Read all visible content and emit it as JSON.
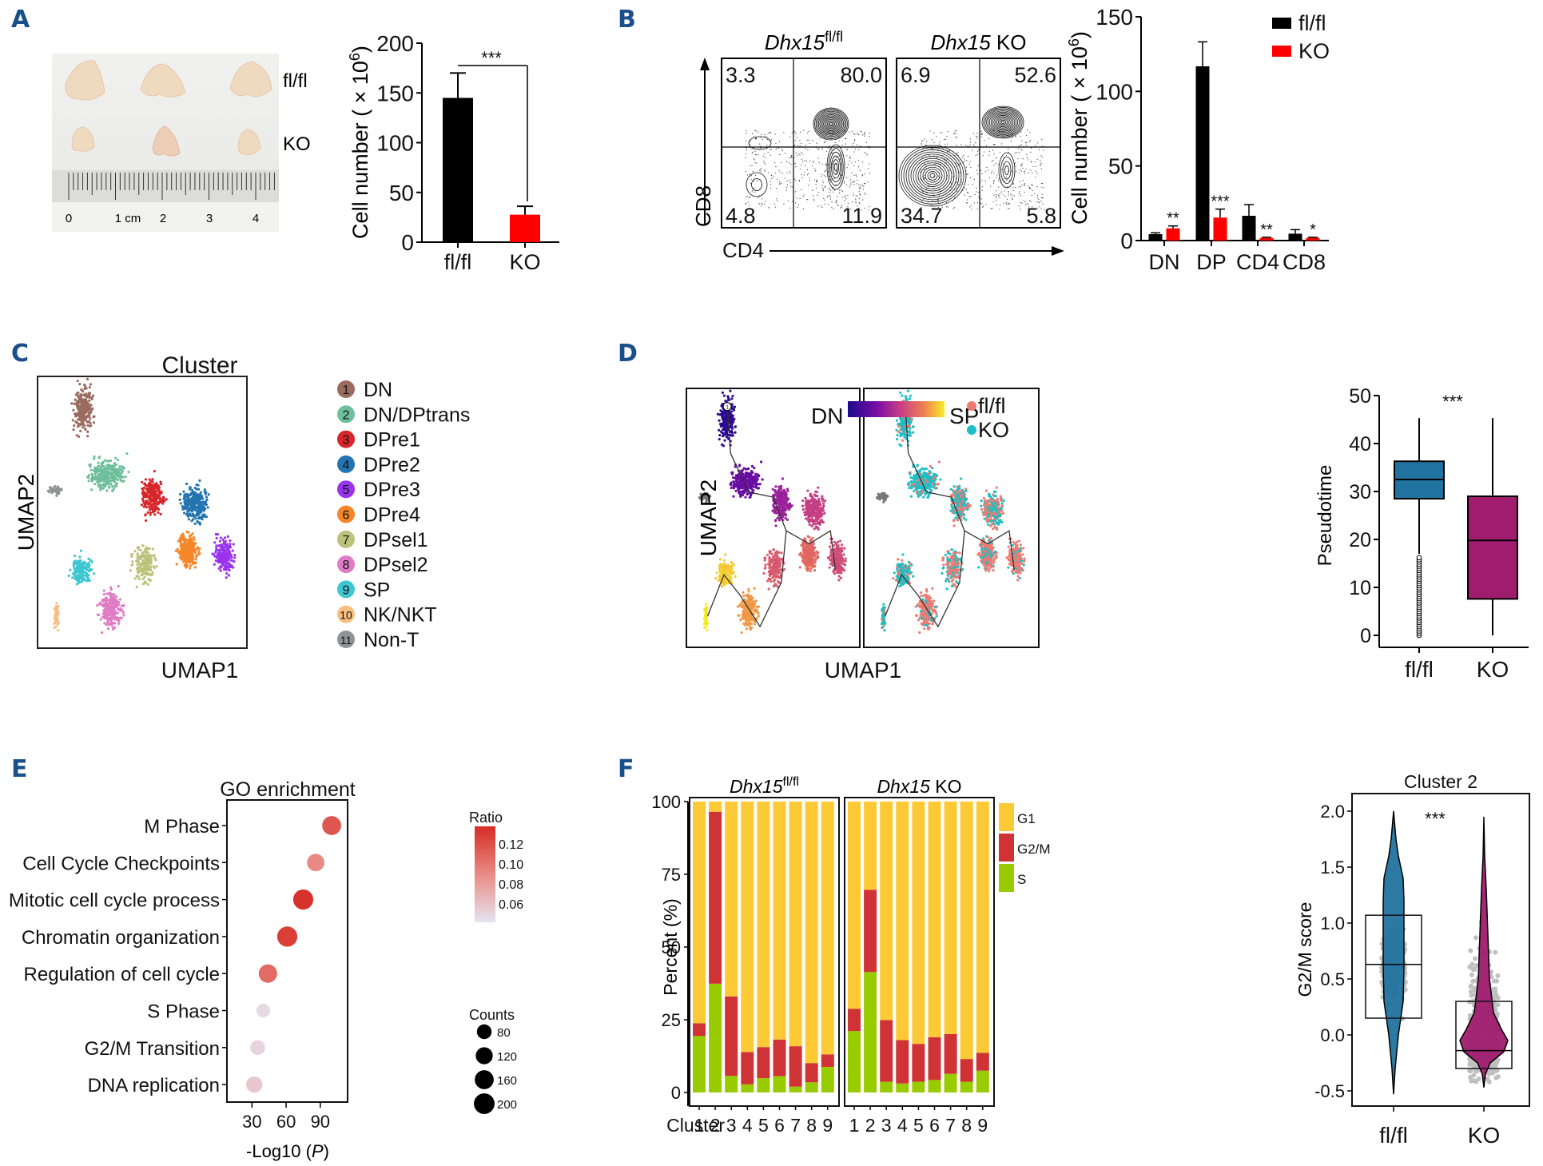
{
  "panel_letters": [
    "A",
    "B",
    "C",
    "D",
    "E",
    "F"
  ],
  "colors": {
    "flfl": "#000000",
    "ko": "#ff0000",
    "panel_letter": "#1b4f8a",
    "box_flfl": "#21739f",
    "box_ko": "#9f1c6f",
    "g1": "#fdca36",
    "g2m": "#cf3336",
    "s": "#99cc00",
    "pt_flfl": "#f07a72",
    "pt_ko": "#1cbfc4",
    "jitter": "#c0c0c0"
  },
  "chart_data": [
    {
      "id": "A-photo",
      "type": "image",
      "row_labels": [
        "fl/fl",
        "KO"
      ],
      "ruler_labels": [
        "0",
        "1 cm",
        "2",
        "3",
        "4"
      ]
    },
    {
      "id": "A-bar",
      "type": "bar",
      "categories": [
        "fl/fl",
        "KO"
      ],
      "values": [
        145,
        27.6
      ],
      "errors_upper": [
        170,
        36
      ],
      "bar_colors": [
        "#000000",
        "#ff0000"
      ],
      "ylabel": "Cell number ( × 10",
      "ylabel_sup": "6",
      "ylabel_close": ")",
      "yticks": [
        0,
        50,
        100,
        150,
        200
      ],
      "ylim": [
        0,
        200
      ],
      "significance": "***"
    },
    {
      "id": "B-flow",
      "type": "contour",
      "xlabel": "CD4",
      "ylabel": "CD8",
      "plots": [
        {
          "title_main": "Dhx15",
          "title_sup": "fl/fl",
          "title_rest": "",
          "quadrants": {
            "ul": "3.3",
            "ur": "80.0",
            "ll": "4.8",
            "lr": "11.9"
          }
        },
        {
          "title_main": "Dhx15",
          "title_sup": "",
          "title_rest": " KO",
          "quadrants": {
            "ul": "6.9",
            "ur": "52.6",
            "ll": "34.7",
            "lr": "5.8"
          }
        }
      ]
    },
    {
      "id": "B-bar",
      "type": "bar",
      "categories": [
        "DN",
        "DP",
        "CD4",
        "CD8"
      ],
      "series": [
        {
          "name": "fl/fl",
          "values": [
            4.3,
            116.8,
            16.6,
            4.6
          ],
          "errors_upper": [
            5.2,
            133.2,
            24.1,
            7.3
          ]
        },
        {
          "name": "KO",
          "values": [
            8.2,
            15.4,
            1.8,
            1.8
          ],
          "errors_upper": [
            9.8,
            21.1,
            2.2,
            2.2
          ]
        }
      ],
      "significance": [
        "**",
        "***",
        "**",
        "*"
      ],
      "ylabel": "Cell number ( × 10",
      "ylabel_sup": "6",
      "ylabel_close": ")",
      "yticks": [
        0,
        50,
        100,
        150
      ],
      "ylim": [
        0,
        150
      ],
      "legend": [
        "fl/fl",
        "KO"
      ],
      "legend_position": "top-right"
    },
    {
      "id": "C-umap",
      "type": "scatter",
      "title": "Cluster",
      "xlabel": "UMAP1",
      "ylabel": "UMAP2",
      "clusters": [
        {
          "id": "1",
          "name": "DN",
          "color": "#9b6b5f"
        },
        {
          "id": "2",
          "name": "DN/DPtrans",
          "color": "#6ebf9c"
        },
        {
          "id": "3",
          "name": "DPre1",
          "color": "#d6262b"
        },
        {
          "id": "4",
          "name": "DPre2",
          "color": "#2374b0"
        },
        {
          "id": "5",
          "name": "DPre3",
          "color": "#9933ee"
        },
        {
          "id": "6",
          "name": "DPre4",
          "color": "#f5862a"
        },
        {
          "id": "7",
          "name": "DPsel1",
          "color": "#bdc27b"
        },
        {
          "id": "8",
          "name": "DPsel2",
          "color": "#e07cc5"
        },
        {
          "id": "9",
          "name": "SP",
          "color": "#3ec6d1"
        },
        {
          "id": "10",
          "name": "NK/NKT",
          "color": "#f8bf7f"
        },
        {
          "id": "11",
          "name": "Non-T",
          "color": "#8f9394"
        }
      ]
    },
    {
      "id": "D-umap",
      "type": "scatter",
      "xlabel": "UMAP1",
      "ylabel": "UMAP2",
      "colorbar": {
        "low": "DN",
        "high": "SP"
      },
      "legend": [
        "fl/fl",
        "KO"
      ],
      "root_label": "1"
    },
    {
      "id": "D-box",
      "type": "box",
      "categories": [
        "fl/fl",
        "KO"
      ],
      "ylabel": "Pseudotime",
      "yticks": [
        0,
        10,
        20,
        30,
        40,
        50
      ],
      "ylim": [
        0,
        50
      ],
      "boxes": [
        {
          "name": "fl/fl",
          "whisker_low": 17,
          "q1": 28.5,
          "median": 32.5,
          "q3": 36.3,
          "whisker_high": 45.3,
          "outliers_range": [
            0,
            16.5
          ]
        },
        {
          "name": "KO",
          "whisker_low": 0,
          "q1": 7.6,
          "median": 19.8,
          "q3": 29,
          "whisker_high": 45.3
        }
      ],
      "significance": "***"
    },
    {
      "id": "E-dot",
      "type": "scatter",
      "title": "GO enrichment",
      "xlabel": "-Log10 (P)",
      "xticks": [
        30,
        60,
        90
      ],
      "xlim": [
        8,
        114
      ],
      "terms": [
        "M Phase",
        "Cell Cycle Checkpoints",
        "Mitotic cell cycle process",
        "Chromatin organization",
        "Regulation of cell cycle",
        "S Phase",
        "G2/M Transition",
        "DNA replication"
      ],
      "x": [
        100,
        86,
        75,
        61,
        44,
        40,
        35,
        32
      ],
      "counts": [
        140,
        110,
        165,
        165,
        130,
        55,
        70,
        90
      ],
      "ratio": [
        0.115,
        0.09,
        0.132,
        0.127,
        0.105,
        0.05,
        0.053,
        0.06
      ],
      "ratio_legend": {
        "title": "Ratio",
        "ticks": [
          "0.12",
          "0.10",
          "0.08",
          "0.06"
        ]
      },
      "count_legend": {
        "title": "Counts",
        "values": [
          80,
          120,
          160,
          200
        ]
      }
    },
    {
      "id": "F-stack",
      "type": "bar",
      "stacked": true,
      "ylabel": "Percent (%)",
      "yticks": [
        0,
        25,
        50,
        75,
        100
      ],
      "ylim": [
        0,
        100
      ],
      "xlabel_prefix": "Cluster",
      "categories": [
        "1",
        "2",
        "3",
        "4",
        "5",
        "6",
        "7",
        "8",
        "9"
      ],
      "legend": [
        "G1",
        "G2/M",
        "S"
      ],
      "facets": [
        {
          "title_main": "Dhx15",
          "title_sup": "fl/fl",
          "title_rest": "",
          "S": [
            19.4,
            37.4,
            5.7,
            2.8,
            4.9,
            5.6,
            2.0,
            3.5,
            8.8
          ],
          "G2M": [
            4.4,
            59.1,
            27.3,
            11.1,
            10.7,
            12.6,
            13.9,
            6.6,
            4.3
          ],
          "G1": [
            76.2,
            3.5,
            67.0,
            86.1,
            84.4,
            81.8,
            84.1,
            89.9,
            86.9
          ]
        },
        {
          "title_main": "Dhx15",
          "title_sup": "",
          "title_rest": " KO",
          "S": [
            21.1,
            41.4,
            3.7,
            3.1,
            3.7,
            4.3,
            6.4,
            3.7,
            7.5
          ],
          "G2M": [
            7.7,
            28.3,
            21.2,
            14.9,
            13.0,
            14.7,
            13.7,
            7.8,
            6.1
          ],
          "G1": [
            71.2,
            30.3,
            75.1,
            82.0,
            83.3,
            81.0,
            79.9,
            88.5,
            86.4
          ]
        }
      ]
    },
    {
      "id": "F-violin",
      "type": "violin",
      "title": "Cluster 2",
      "ylabel": "G2/M score",
      "categories": [
        "fl/fl",
        "KO"
      ],
      "yticks": [
        -0.5,
        0.0,
        0.5,
        1.0,
        1.5,
        2.0
      ],
      "ytick_labels": [
        "-0.5",
        "0.0",
        "0.5",
        "1.0",
        "1.5",
        "2.0"
      ],
      "ylim": [
        -0.63,
        2.16
      ],
      "boxes": [
        {
          "name": "fl/fl",
          "min": -0.53,
          "q1": 0.15,
          "median": 0.63,
          "q3": 1.07,
          "max": 2.0
        },
        {
          "name": "KO",
          "min": -0.47,
          "q1": -0.3,
          "median": -0.14,
          "q3": 0.3,
          "max": 1.95
        }
      ],
      "significance": "***"
    }
  ]
}
